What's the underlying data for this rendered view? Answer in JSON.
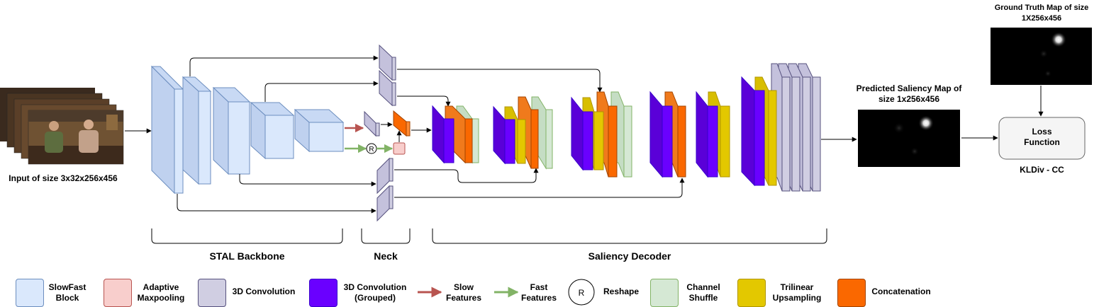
{
  "labels": {
    "input": "Input of size 3x32x256x456",
    "predicted_line1": "Predicted Saliency Map of",
    "predicted_line2": "size 1x256x456",
    "gt_line1": "Ground Truth Map of size",
    "gt_line2": "1X256x456",
    "loss_line1": "Loss",
    "loss_line2": "Function",
    "loss_metric": "KLDiv - CC",
    "reshape_symbol": "R"
  },
  "sections": {
    "backbone": "STAL Backbone",
    "neck": "Neck",
    "decoder": "Saliency Decoder"
  },
  "legend": [
    {
      "key": "slowfast",
      "line1": "SlowFast",
      "line2": "Block",
      "color": "#dae8fc"
    },
    {
      "key": "adaptive",
      "line1": "Adaptive",
      "line2": "Maxpooling",
      "color": "#f8cecc"
    },
    {
      "key": "conv3d",
      "line1": "3D Convolution",
      "line2": "",
      "color": "#d0cee2"
    },
    {
      "key": "conv3d_grouped",
      "line1": "3D Convolution",
      "line2": "(Grouped)",
      "color": "#6a00ff"
    },
    {
      "key": "slow",
      "line1": "Slow",
      "line2": "Features",
      "color": "#b85450"
    },
    {
      "key": "fast",
      "line1": "Fast",
      "line2": "Features",
      "color": "#82b366"
    },
    {
      "key": "reshape",
      "line1": "Reshape",
      "line2": "",
      "symbol": "R"
    },
    {
      "key": "shuffle",
      "line1": "Channel",
      "line2": "Shuffle",
      "color": "#d5e8d4"
    },
    {
      "key": "trilinear",
      "line1": "Trilinear",
      "line2": "Upsampling",
      "color": "#e3c800"
    },
    {
      "key": "concat",
      "line1": "Concatenation",
      "line2": "",
      "color": "#fa6800"
    }
  ]
}
